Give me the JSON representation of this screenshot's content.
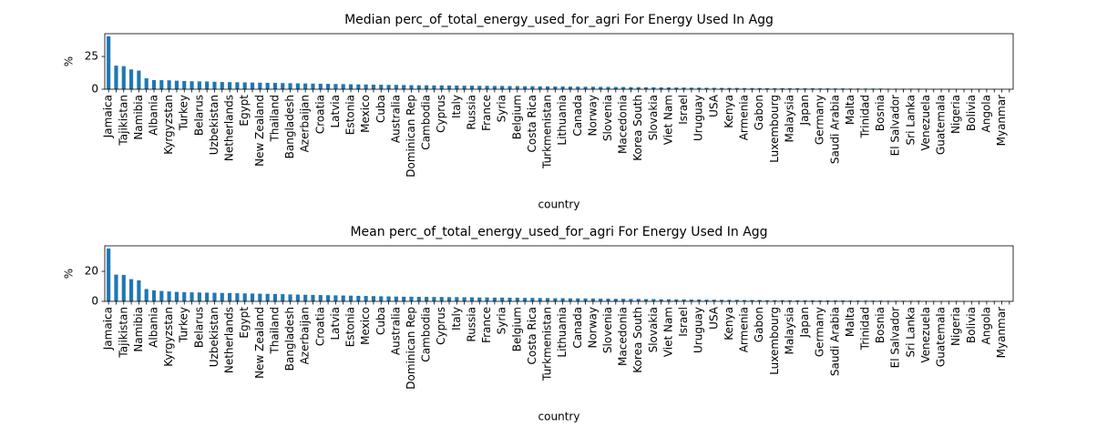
{
  "chart_data": [
    {
      "type": "bar",
      "title": "Median perc_of_total_energy_used_for_agri For Energy Used In Agg",
      "xlabel": "country",
      "ylabel": "%",
      "color": "#1f77b4",
      "categories": [
        "Jamaica",
        null,
        "Tajikistan",
        null,
        "Namibia",
        null,
        "Albania",
        null,
        "Kyrgyzstan",
        null,
        "Turkey",
        null,
        "Belarus",
        null,
        "Uzbekistan",
        null,
        "Netherlands",
        null,
        "Egypt",
        null,
        "New Zealand",
        null,
        "Thailand",
        null,
        "Bangladesh",
        null,
        "Azerbaijan",
        null,
        "Croatia",
        null,
        "Latvia",
        null,
        "Estonia",
        null,
        "Mexico",
        null,
        "Cuba",
        null,
        "Australia",
        null,
        "Dominican Rep",
        null,
        "Cambodia",
        null,
        "Cyprus",
        null,
        "Italy",
        null,
        "Russia",
        null,
        "France",
        null,
        "Syria",
        null,
        "Belgium",
        null,
        "Costa Rica",
        null,
        "Turkmenistan",
        null,
        "Lithuania",
        null,
        "Canada",
        null,
        "Norway",
        null,
        "Slovenia",
        null,
        "Macedonia",
        null,
        "Korea South",
        null,
        "Slovakia",
        null,
        "Viet Nam",
        null,
        "Israel",
        null,
        "Uruguay",
        null,
        "USA",
        null,
        "Kenya",
        null,
        "Armenia",
        null,
        "Gabon",
        null,
        "Luxembourg",
        null,
        "Malaysia",
        null,
        "Japan",
        null,
        "Germany",
        null,
        "Saudi Arabia",
        null,
        "Malta",
        null,
        "Trinidad",
        null,
        "Bosnia",
        null,
        "El Salvador",
        null,
        "Sri Lanka",
        null,
        "Venezuela",
        null,
        "Guatemala",
        null,
        "Nigeria",
        null,
        "Bolivia",
        null,
        "Angola",
        null,
        "Myanmar",
        null
      ],
      "values": [
        40.4,
        18.0,
        17.6,
        15.1,
        14.2,
        8.3,
        7.0,
        6.9,
        6.8,
        6.5,
        6.3,
        6.1,
        6.0,
        5.9,
        5.7,
        5.5,
        5.4,
        5.3,
        5.2,
        5.1,
        5.0,
        4.9,
        4.8,
        4.7,
        4.6,
        4.5,
        4.4,
        4.3,
        4.2,
        4.1,
        4.0,
        3.9,
        3.8,
        3.7,
        3.6,
        3.5,
        3.4,
        3.3,
        3.3,
        3.2,
        3.1,
        3.0,
        3.0,
        2.9,
        2.9,
        2.8,
        2.8,
        2.7,
        2.7,
        2.6,
        2.6,
        2.5,
        2.5,
        2.4,
        2.4,
        2.3,
        2.3,
        2.2,
        2.2,
        2.1,
        2.1,
        2.0,
        2.0,
        1.9,
        1.9,
        1.8,
        1.8,
        1.7,
        1.7,
        1.6,
        1.6,
        1.5,
        1.5,
        1.4,
        1.4,
        1.3,
        1.3,
        1.2,
        1.2,
        1.1,
        1.1,
        1.0,
        1.0,
        1.0,
        0.9,
        0.9,
        0.9,
        0.8,
        0.8,
        0.8,
        0.7,
        0.7,
        0.7,
        0.7,
        0.6,
        0.6,
        0.6,
        0.6,
        0.5,
        0.5,
        0.5,
        0.5,
        0.5,
        0.4,
        0.4,
        0.4,
        0.4,
        0.4,
        0.3,
        0.3,
        0.3,
        0.3,
        0.3,
        0.3,
        0.2,
        0.2,
        0.2,
        0.2,
        0.2,
        0.1
      ],
      "ylim": [
        0,
        42.4
      ],
      "yticks": [
        0,
        25
      ]
    },
    {
      "type": "bar",
      "title": "Mean perc_of_total_energy_used_for_agri For Energy Used In Agg",
      "xlabel": "country",
      "ylabel": "%",
      "color": "#1f77b4",
      "categories": [
        "Jamaica",
        null,
        "Tajikistan",
        null,
        "Namibia",
        null,
        "Albania",
        null,
        "Kyrgyzstan",
        null,
        "Turkey",
        null,
        "Belarus",
        null,
        "Uzbekistan",
        null,
        "Netherlands",
        null,
        "Egypt",
        null,
        "New Zealand",
        null,
        "Thailand",
        null,
        "Bangladesh",
        null,
        "Azerbaijan",
        null,
        "Croatia",
        null,
        "Latvia",
        null,
        "Estonia",
        null,
        "Mexico",
        null,
        "Cuba",
        null,
        "Australia",
        null,
        "Dominican Rep",
        null,
        "Cambodia",
        null,
        "Cyprus",
        null,
        "Italy",
        null,
        "Russia",
        null,
        "France",
        null,
        "Syria",
        null,
        "Belgium",
        null,
        "Costa Rica",
        null,
        "Turkmenistan",
        null,
        "Lithuania",
        null,
        "Canada",
        null,
        "Norway",
        null,
        "Slovenia",
        null,
        "Macedonia",
        null,
        "Korea South",
        null,
        "Slovakia",
        null,
        "Viet Nam",
        null,
        "Israel",
        null,
        "Uruguay",
        null,
        "USA",
        null,
        "Kenya",
        null,
        "Armenia",
        null,
        "Gabon",
        null,
        "Luxembourg",
        null,
        "Malaysia",
        null,
        "Japan",
        null,
        "Germany",
        null,
        "Saudi Arabia",
        null,
        "Malta",
        null,
        "Trinidad",
        null,
        "Bosnia",
        null,
        "El Salvador",
        null,
        "Sri Lanka",
        null,
        "Venezuela",
        null,
        "Guatemala",
        null,
        "Nigeria",
        null,
        "Bolivia",
        null,
        "Angola",
        null,
        "Myanmar",
        null
      ],
      "values": [
        35.2,
        17.8,
        17.6,
        14.8,
        14.0,
        8.2,
        7.3,
        6.9,
        6.6,
        6.3,
        6.1,
        6.0,
        5.9,
        5.8,
        5.7,
        5.6,
        5.5,
        5.4,
        5.3,
        5.2,
        5.1,
        5.0,
        4.9,
        4.8,
        4.6,
        4.5,
        4.4,
        4.3,
        4.2,
        4.1,
        4.0,
        3.9,
        3.8,
        3.7,
        3.6,
        3.5,
        3.4,
        3.3,
        3.2,
        3.1,
        3.1,
        3.0,
        3.0,
        2.9,
        2.9,
        2.8,
        2.8,
        2.7,
        2.7,
        2.6,
        2.6,
        2.5,
        2.5,
        2.4,
        2.4,
        2.3,
        2.3,
        2.2,
        2.2,
        2.1,
        2.1,
        2.0,
        2.0,
        1.9,
        1.9,
        1.8,
        1.8,
        1.7,
        1.7,
        1.6,
        1.6,
        1.5,
        1.5,
        1.4,
        1.4,
        1.3,
        1.3,
        1.2,
        1.2,
        1.1,
        1.1,
        1.0,
        1.0,
        1.0,
        0.9,
        0.9,
        0.9,
        0.8,
        0.8,
        0.8,
        0.7,
        0.7,
        0.7,
        0.7,
        0.6,
        0.6,
        0.6,
        0.6,
        0.5,
        0.5,
        0.5,
        0.5,
        0.5,
        0.4,
        0.4,
        0.4,
        0.4,
        0.4,
        0.3,
        0.3,
        0.3,
        0.3,
        0.3,
        0.3,
        0.2,
        0.2,
        0.2,
        0.2,
        0.2,
        0.1
      ],
      "ylim": [
        0,
        37
      ],
      "yticks": [
        0,
        20
      ]
    }
  ]
}
